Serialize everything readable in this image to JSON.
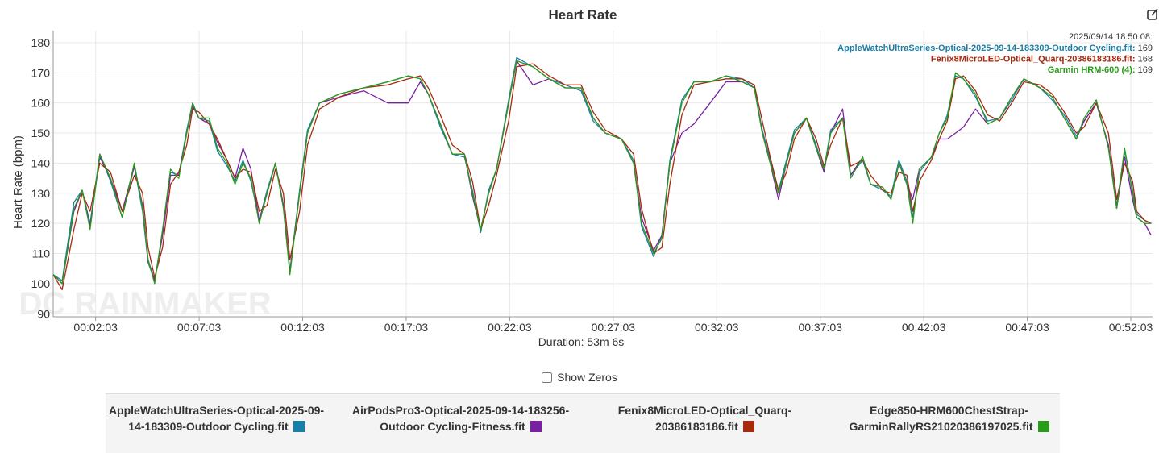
{
  "chart_data": {
    "type": "line",
    "title": "Heart Rate",
    "y_label": "Heart Rate (bpm)",
    "x_label": "Duration: 53m 6s",
    "watermark": "DC RAINMAKER",
    "show_zeros": "Show Zeros",
    "xlim": [
      0,
      3186
    ],
    "ylim": [
      89,
      184
    ],
    "yticks": [
      90,
      100,
      110,
      120,
      130,
      140,
      150,
      160,
      170,
      180
    ],
    "xticks": [
      {
        "value": 123,
        "label": "00:02:03"
      },
      {
        "value": 423,
        "label": "00:07:03"
      },
      {
        "value": 723,
        "label": "00:12:03"
      },
      {
        "value": 1023,
        "label": "00:17:03"
      },
      {
        "value": 1323,
        "label": "00:22:03"
      },
      {
        "value": 1623,
        "label": "00:27:03"
      },
      {
        "value": 1923,
        "label": "00:32:03"
      },
      {
        "value": 2223,
        "label": "00:37:03"
      },
      {
        "value": 2523,
        "label": "00:42:03"
      },
      {
        "value": 2823,
        "label": "00:47:03"
      },
      {
        "value": 3123,
        "label": "00:52:03"
      }
    ],
    "grid": true,
    "x": [
      0,
      26,
      60,
      84,
      107,
      135,
      166,
      200,
      235,
      259,
      275,
      294,
      317,
      340,
      364,
      387,
      404,
      422,
      452,
      476,
      504,
      527,
      550,
      573,
      597,
      620,
      644,
      667,
      686,
      714,
      737,
      772,
      830,
      900,
      970,
      1029,
      1064,
      1087,
      1122,
      1157,
      1192,
      1215,
      1239,
      1262,
      1285,
      1320,
      1343,
      1390,
      1437,
      1484,
      1530,
      1565,
      1600,
      1647,
      1682,
      1705,
      1740,
      1764,
      1787,
      1822,
      1857,
      1904,
      1950,
      1997,
      2032,
      2055,
      2078,
      2102,
      2125,
      2148,
      2183,
      2211,
      2234,
      2253,
      2288,
      2311,
      2346,
      2369,
      2404,
      2428,
      2451,
      2474,
      2491,
      2510,
      2545,
      2568,
      2591,
      2615,
      2638,
      2673,
      2708,
      2743,
      2778,
      2813,
      2860,
      2895,
      2930,
      2965,
      2988,
      3023,
      3058,
      3082,
      3105,
      3128,
      3140,
      3163,
      3182
    ],
    "series": [
      {
        "name": "AppleWatchUltraSeries-Optical-2025-09-14-183309-Outdoor Cycling.fit",
        "color": "#1a7fa6",
        "values": [
          103,
          101,
          127,
          131,
          120,
          143,
          134,
          122,
          139,
          124,
          107,
          101,
          117,
          137,
          136,
          151,
          160,
          155,
          154,
          144,
          139,
          134,
          141,
          134,
          121,
          131,
          140,
          126,
          104,
          131,
          151,
          160,
          163,
          165,
          167,
          169,
          168,
          163,
          152,
          143,
          142,
          131,
          117,
          131,
          138,
          161,
          175,
          172,
          168,
          166,
          164,
          154,
          150,
          148,
          141,
          119,
          109,
          116,
          141,
          161,
          167,
          167,
          169,
          168,
          165,
          151,
          141,
          131,
          141,
          151,
          155,
          146,
          138,
          151,
          155,
          136,
          141,
          133,
          131,
          129,
          141,
          134,
          122,
          137,
          142,
          150,
          156,
          169,
          168,
          162,
          154,
          155,
          161,
          168,
          165,
          161,
          156,
          149,
          154,
          160,
          146,
          126,
          144,
          131,
          123,
          121,
          120
        ]
      },
      {
        "name": "AirPodsPro3-Optical-2025-09-14-183256-Outdoor Cycling-Fitness.fit",
        "color": "#7a1fa2",
        "values": [
          103,
          100,
          124,
          131,
          119,
          142,
          135,
          124,
          139,
          126,
          108,
          101,
          116,
          136,
          136,
          150,
          159,
          155,
          153,
          147,
          141,
          135,
          145,
          138,
          121,
          130,
          140,
          126,
          104,
          130,
          150,
          160,
          162,
          164,
          160,
          160,
          167,
          163,
          153,
          143,
          143,
          129,
          118,
          130,
          138,
          160,
          174,
          166,
          168,
          165,
          165,
          155,
          150,
          148,
          140,
          122,
          111,
          116,
          140,
          150,
          153,
          160,
          167,
          167,
          165,
          150,
          140,
          128,
          140,
          150,
          155,
          145,
          137,
          150,
          158,
          136,
          142,
          133,
          132,
          128,
          140,
          133,
          128,
          138,
          142,
          148,
          148,
          150,
          152,
          158,
          153,
          155,
          162,
          168,
          165,
          162,
          155,
          148,
          154,
          160,
          146,
          125,
          142,
          128,
          122,
          120,
          116
        ]
      },
      {
        "name": "Fenix8MicroLED-Optical_Quarq-20386183186.fit",
        "color": "#a52a0f",
        "values": [
          103,
          98,
          118,
          130,
          124,
          140,
          137,
          124,
          136,
          130,
          112,
          102,
          112,
          133,
          137,
          146,
          158,
          157,
          153,
          148,
          141,
          135,
          138,
          137,
          124,
          126,
          138,
          130,
          108,
          124,
          146,
          158,
          162,
          165,
          166,
          168,
          169,
          165,
          156,
          146,
          143,
          134,
          118,
          126,
          136,
          154,
          172,
          173,
          169,
          166,
          166,
          157,
          151,
          148,
          143,
          125,
          110,
          112,
          133,
          156,
          166,
          167,
          168,
          168,
          166,
          154,
          142,
          131,
          137,
          148,
          155,
          148,
          139,
          146,
          155,
          139,
          141,
          136,
          131,
          130,
          137,
          136,
          124,
          134,
          141,
          148,
          154,
          168,
          169,
          164,
          156,
          154,
          160,
          167,
          166,
          163,
          157,
          150,
          152,
          160,
          150,
          128,
          140,
          134,
          124,
          121,
          120
        ]
      },
      {
        "name": "Edge850-HRM600ChestStrap-GarminRallyRS21020386197025.fit",
        "color": "#2a9a1a",
        "values": [
          103,
          100,
          125,
          131,
          118,
          143,
          135,
          122,
          140,
          125,
          108,
          100,
          118,
          138,
          135,
          150,
          160,
          155,
          155,
          145,
          140,
          133,
          140,
          135,
          120,
          130,
          140,
          125,
          103,
          130,
          150,
          160,
          163,
          165,
          167,
          169,
          168,
          163,
          153,
          143,
          143,
          130,
          118,
          130,
          138,
          160,
          174,
          172,
          168,
          165,
          165,
          155,
          150,
          148,
          140,
          120,
          110,
          115,
          140,
          160,
          167,
          167,
          169,
          167,
          165,
          150,
          140,
          130,
          140,
          150,
          155,
          145,
          138,
          150,
          155,
          135,
          142,
          133,
          132,
          128,
          140,
          133,
          120,
          138,
          142,
          150,
          155,
          170,
          168,
          163,
          153,
          155,
          162,
          168,
          165,
          162,
          155,
          148,
          155,
          161,
          145,
          125,
          145,
          130,
          122,
          120,
          120
        ]
      }
    ],
    "tooltip": {
      "time": "2025/09/14 18:50:08:",
      "rows": [
        {
          "label": "AppleWatchUltraSeries-Optical-2025-09-14-183309-Outdoor Cycling.fit:",
          "value": 169,
          "color": "#1a7fa6"
        },
        {
          "label": "Fenix8MicroLED-Optical_Quarq-20386183186.fit:",
          "value": 168,
          "color": "#a52a0f"
        },
        {
          "label": "Garmin HRM-600 (4):",
          "value": 169,
          "color": "#2a9a1a"
        }
      ]
    }
  }
}
